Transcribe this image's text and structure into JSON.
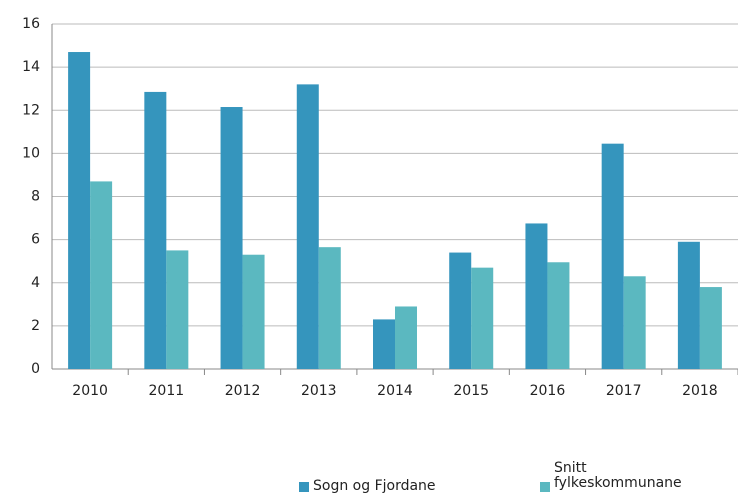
{
  "chart_data": {
    "type": "bar",
    "categories": [
      "2010",
      "2011",
      "2012",
      "2013",
      "2014",
      "2015",
      "2016",
      "2017",
      "2018"
    ],
    "series": [
      {
        "name": "Sogn og Fjordane",
        "color": "#3595bd",
        "values": [
          14.7,
          12.85,
          12.15,
          13.2,
          2.3,
          5.4,
          6.75,
          10.45,
          5.9
        ]
      },
      {
        "name": "Snitt fylkeskommunane",
        "color": "#5bb8c0",
        "values": [
          8.7,
          5.5,
          5.3,
          5.65,
          2.9,
          4.7,
          4.95,
          4.3,
          3.8
        ]
      }
    ],
    "ylim": [
      0,
      16
    ],
    "yticks": [
      0,
      2,
      4,
      6,
      8,
      10,
      12,
      14,
      16
    ],
    "grid": true
  }
}
